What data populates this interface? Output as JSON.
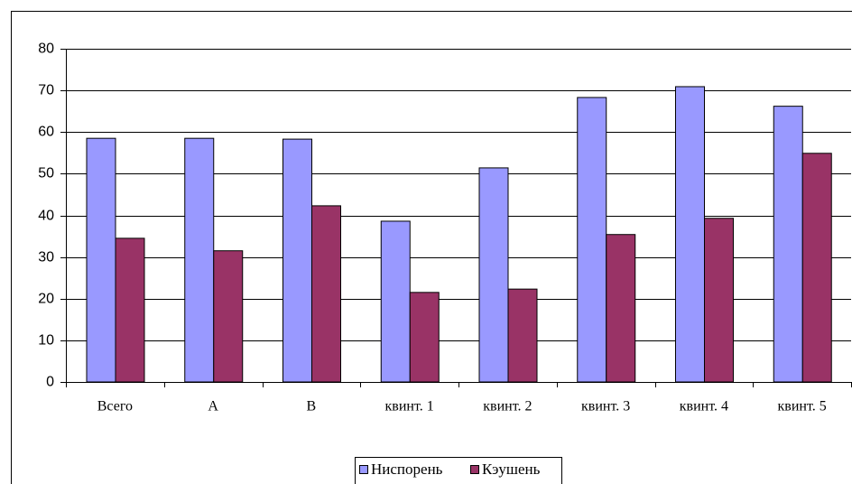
{
  "chart_data": {
    "type": "bar",
    "categories": [
      "Всего",
      "A",
      "B",
      "квинт. 1",
      "квинт. 2",
      "квинт. 3",
      "квинт. 4",
      "квинт. 5"
    ],
    "series": [
      {
        "name": "Ниспорень",
        "color": "#9999ff",
        "values": [
          58.5,
          58.5,
          58.3,
          38.6,
          51.4,
          68.3,
          70.9,
          66.2
        ]
      },
      {
        "name": "Кэушень",
        "color": "#993366",
        "values": [
          34.5,
          31.5,
          42.3,
          21.5,
          22.3,
          35.4,
          39.3,
          54.9
        ]
      }
    ],
    "ylim": [
      0,
      80
    ],
    "yticks": [
      0,
      10,
      20,
      30,
      40,
      50,
      60,
      70,
      80
    ],
    "grid": true,
    "legend": "bottom"
  }
}
